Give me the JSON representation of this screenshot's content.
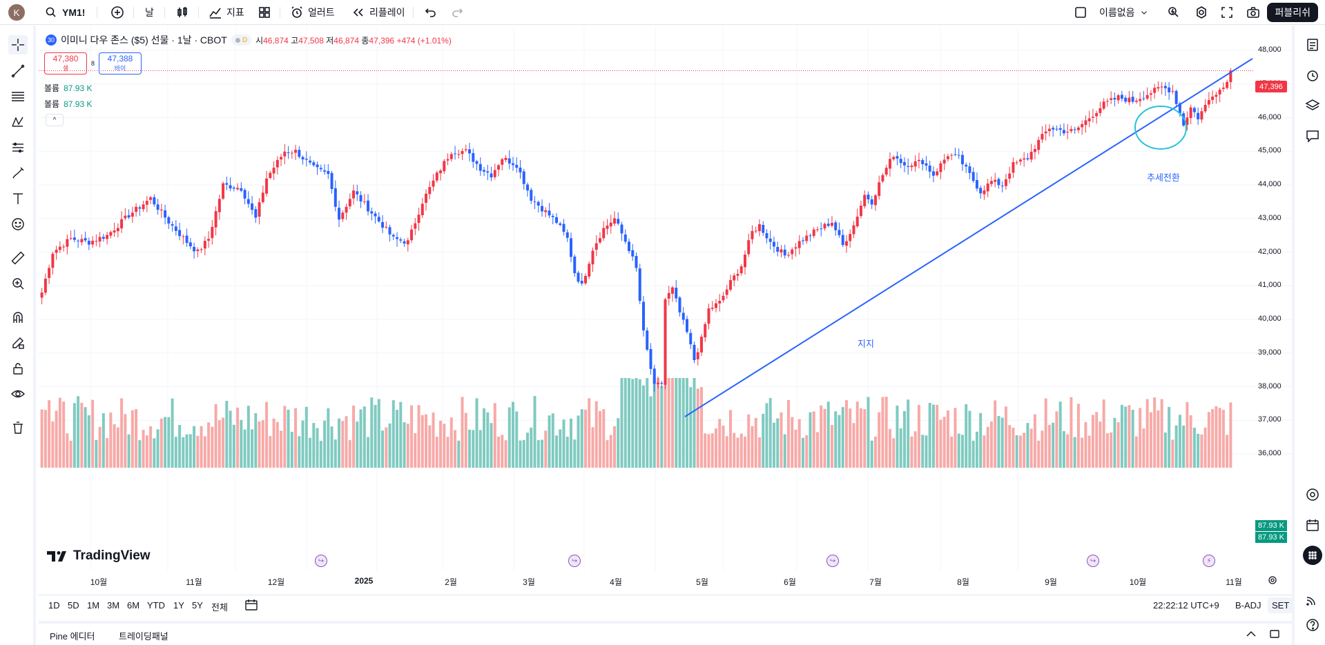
{
  "topbar": {
    "avatar_letter": "K",
    "symbol": "YM1!",
    "add_symbol": "+",
    "interval": "날",
    "indicators": "지표",
    "alert": "얼러트",
    "replay": "리플레이",
    "layout_name": "이름없음",
    "publish": "퍼블리쉬"
  },
  "legend": {
    "badge": "30",
    "title": "이미니 다우 존스 ($5) 선물 · 1날 · CBOT",
    "d_badge": "D",
    "open_label": "시",
    "open": "46,874",
    "high_label": "고",
    "high": "47,508",
    "low_label": "저",
    "low": "46,874",
    "close_label": "종",
    "close": "47,396",
    "change": "+474 (+1.01%)"
  },
  "trade": {
    "sell_price": "47,380",
    "sell_label": "셀",
    "spread": "8",
    "buy_price": "47,388",
    "buy_label": "바이"
  },
  "volume_rows": [
    {
      "label": "볼륨",
      "value": "87.93 K"
    },
    {
      "label": "볼륨",
      "value": "87.93 K"
    }
  ],
  "collapse": "^",
  "price_axis": [
    "48,000",
    "47,000",
    "46,000",
    "45,000",
    "44,000",
    "43,000",
    "42,000",
    "41,000",
    "40,000",
    "39,000",
    "38,000",
    "37,000",
    "36,000"
  ],
  "last_price": "47,396",
  "last_volume": [
    "87.93 K",
    "87.93 K"
  ],
  "time_axis": [
    "10월",
    "11월",
    "12월",
    "2025",
    "2월",
    "3월",
    "4월",
    "5월",
    "6월",
    "7월",
    "8월",
    "9월",
    "10월",
    "11월"
  ],
  "annotations": {
    "support": "지지",
    "trend_change": "추세전환"
  },
  "brand": "TradingView",
  "ranges": [
    "1D",
    "5D",
    "1M",
    "3M",
    "6M",
    "YTD",
    "1Y",
    "5Y",
    "전체"
  ],
  "status": {
    "time": "22:22:12 UTC+9",
    "adj": "B-ADJ",
    "session": "SET"
  },
  "panels": {
    "pine": "Pine 에디터",
    "trading": "트레이딩패널"
  },
  "colors": {
    "up": "#f23645",
    "down": "#2962ff",
    "vol_up": "#f7a9a7",
    "vol_down": "#7fcac0",
    "trend": "#2962ff",
    "circle": "#22c3d8"
  },
  "chart_data": {
    "type": "candlestick",
    "ylim": [
      35800,
      48300
    ],
    "anchors": [
      [
        0,
        40800
      ],
      [
        3,
        42000
      ],
      [
        8,
        42400
      ],
      [
        13,
        42300
      ],
      [
        18,
        42500
      ],
      [
        24,
        43100
      ],
      [
        30,
        43600
      ],
      [
        35,
        42900
      ],
      [
        40,
        42300
      ],
      [
        43,
        42000
      ],
      [
        46,
        42400
      ],
      [
        50,
        44000
      ],
      [
        55,
        43900
      ],
      [
        59,
        43000
      ],
      [
        62,
        44200
      ],
      [
        67,
        45000
      ],
      [
        70,
        45000
      ],
      [
        75,
        44500
      ],
      [
        79,
        44300
      ],
      [
        82,
        43000
      ],
      [
        86,
        43800
      ],
      [
        90,
        43300
      ],
      [
        94,
        42800
      ],
      [
        97,
        42400
      ],
      [
        101,
        42300
      ],
      [
        105,
        43500
      ],
      [
        109,
        44300
      ],
      [
        113,
        45000
      ],
      [
        117,
        45000
      ],
      [
        121,
        44500
      ],
      [
        124,
        44300
      ],
      [
        127,
        44800
      ],
      [
        131,
        44600
      ],
      [
        135,
        43600
      ],
      [
        139,
        43200
      ],
      [
        142,
        42900
      ],
      [
        145,
        42400
      ],
      [
        147,
        41400
      ],
      [
        149,
        41000
      ],
      [
        152,
        42100
      ],
      [
        155,
        42700
      ],
      [
        158,
        43000
      ],
      [
        162,
        42100
      ],
      [
        164,
        41500
      ],
      [
        166,
        39600
      ],
      [
        169,
        38000
      ],
      [
        171,
        38100
      ],
      [
        172,
        40600
      ],
      [
        174,
        40900
      ],
      [
        176,
        40200
      ],
      [
        178,
        39600
      ],
      [
        180,
        38800
      ],
      [
        182,
        39400
      ],
      [
        184,
        40300
      ],
      [
        187,
        40500
      ],
      [
        190,
        41100
      ],
      [
        193,
        41600
      ],
      [
        196,
        42600
      ],
      [
        198,
        42800
      ],
      [
        201,
        42300
      ],
      [
        205,
        41900
      ],
      [
        209,
        42300
      ],
      [
        213,
        42600
      ],
      [
        218,
        42900
      ],
      [
        221,
        42200
      ],
      [
        224,
        42800
      ],
      [
        227,
        43700
      ],
      [
        229,
        43500
      ],
      [
        232,
        44300
      ],
      [
        235,
        44900
      ],
      [
        238,
        44600
      ],
      [
        243,
        44700
      ],
      [
        246,
        44300
      ],
      [
        250,
        44900
      ],
      [
        253,
        44800
      ],
      [
        256,
        44300
      ],
      [
        259,
        43800
      ],
      [
        262,
        44100
      ],
      [
        265,
        44000
      ],
      [
        268,
        44600
      ],
      [
        272,
        44800
      ],
      [
        275,
        45300
      ],
      [
        278,
        45700
      ],
      [
        282,
        45600
      ],
      [
        285,
        45600
      ],
      [
        289,
        46000
      ],
      [
        293,
        46400
      ],
      [
        297,
        46600
      ],
      [
        301,
        46500
      ],
      [
        305,
        46700
      ],
      [
        309,
        46900
      ],
      [
        312,
        46800
      ],
      [
        315,
        45800
      ],
      [
        317,
        46300
      ],
      [
        319,
        46000
      ],
      [
        323,
        46700
      ],
      [
        326,
        46900
      ],
      [
        328,
        47396
      ]
    ],
    "n_candles": 329,
    "volume_ylim": [
      0,
      100
    ]
  }
}
